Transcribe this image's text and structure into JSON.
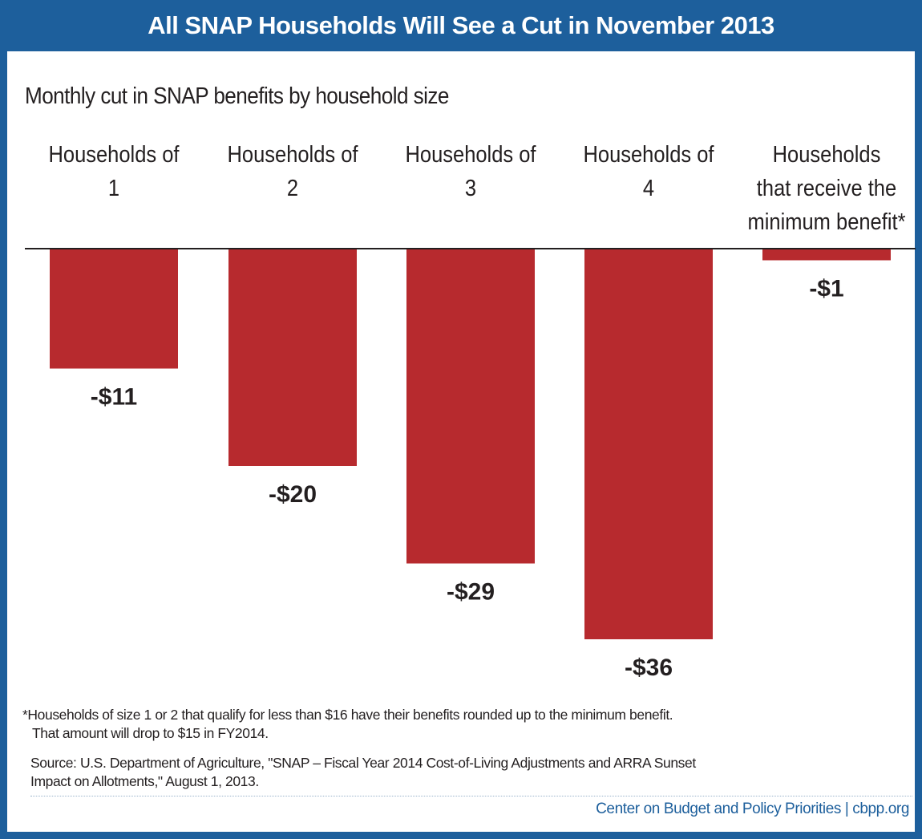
{
  "header": {
    "title": "All SNAP Households Will See a Cut in November 2013"
  },
  "colors": {
    "brand_blue": "#1d5f9c",
    "bar_red": "#b72a2e"
  },
  "chart_data": {
    "type": "bar",
    "subtitle": "Monthly cut in SNAP benefits by household size",
    "categories": [
      [
        "Households of",
        "1"
      ],
      [
        "Households of",
        "2"
      ],
      [
        "Households of",
        "3"
      ],
      [
        "Households of",
        "4"
      ],
      [
        "Households",
        "that receive the",
        "minimum benefit*"
      ]
    ],
    "values": [
      -11,
      -20,
      -29,
      -36,
      -1
    ],
    "value_labels": [
      "-$11",
      "-$20",
      "-$29",
      "-$36",
      "-$1"
    ],
    "ylim": [
      -36,
      0
    ],
    "grid": false,
    "legend": "none"
  },
  "footer": {
    "footnote_line1": "*Households of size 1 or 2 that qualify for less than $16 have their benefits rounded up to the minimum benefit.",
    "footnote_line2": "That amount will drop to $15 in FY2014.",
    "source_line1": "Source: U.S. Department of Agriculture, \"SNAP – Fiscal Year 2014 Cost-of-Living Adjustments and ARRA Sunset",
    "source_line2": "Impact on Allotments,\" August 1, 2013.",
    "credit": "Center on Budget and Policy Priorities | cbpp.org"
  }
}
